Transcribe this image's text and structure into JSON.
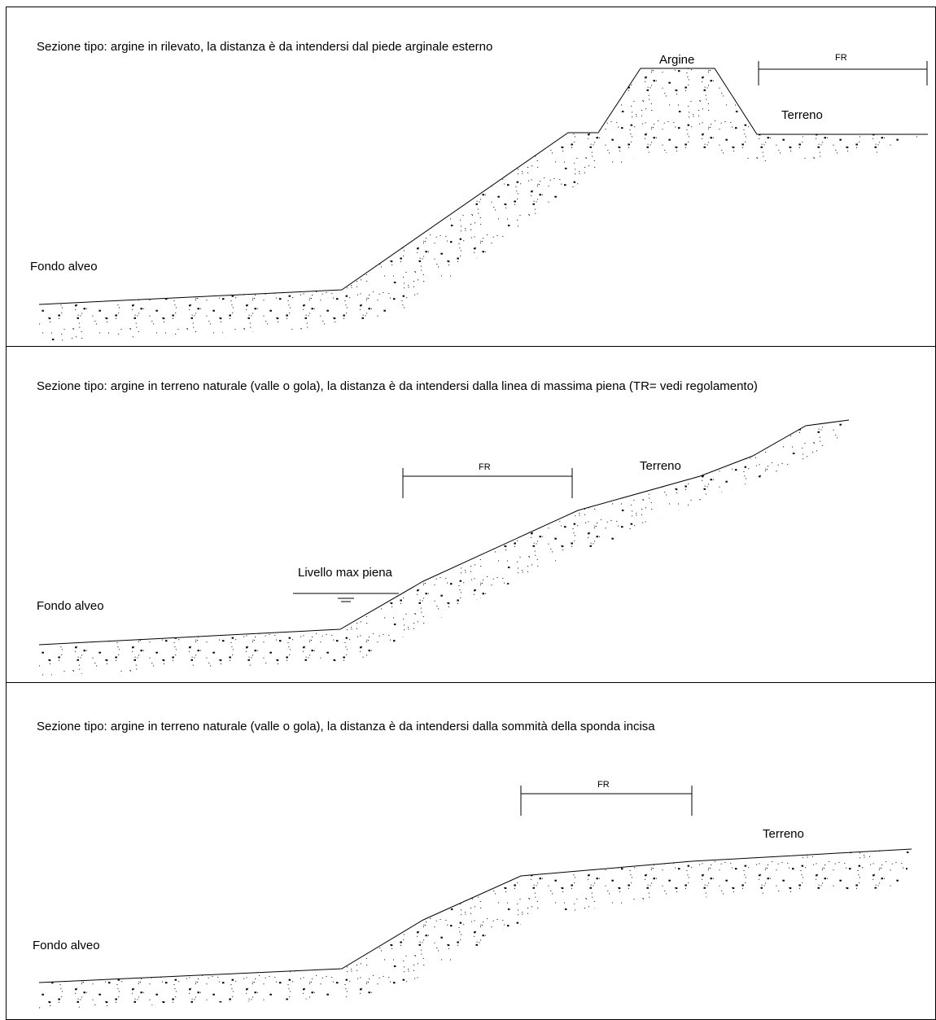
{
  "panels": [
    {
      "title": "Sezione tipo: argine in rilevato, la distanza è da intendersi dal piede arginale esterno",
      "labels": {
        "argine": "Argine",
        "fr": "FR",
        "terreno": "Terreno",
        "fondo": "Fondo alveo"
      }
    },
    {
      "title": "Sezione tipo: argine in terreno naturale (valle o gola), la distanza è da intendersi dalla linea di massima piena (TR= vedi regolamento)",
      "labels": {
        "fr": "FR",
        "terreno": "Terreno",
        "livello": "Livello max piena",
        "fondo": "Fondo alveo"
      }
    },
    {
      "title": "Sezione tipo: argine in terreno naturale (valle o gola), la distanza è da intendersi dalla sommità della sponda incisa",
      "labels": {
        "fr": "FR",
        "terreno": "Terreno",
        "fondo": "Fondo alveo"
      }
    }
  ]
}
